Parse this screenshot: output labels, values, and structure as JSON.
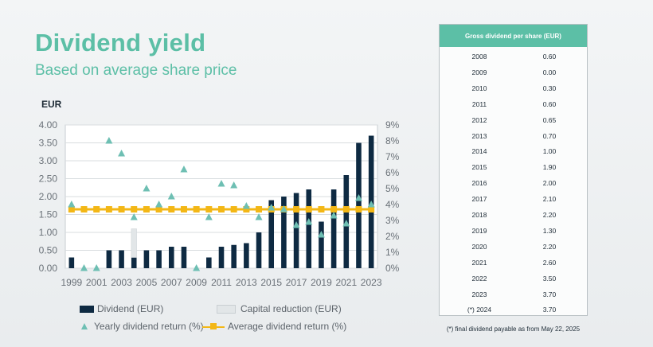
{
  "title": "Dividend yield",
  "subtitle": "Based on average share price",
  "chart_data": {
    "type": "bar",
    "y_unit_label": "EUR",
    "years": [
      1999,
      2000,
      2001,
      2002,
      2003,
      2004,
      2005,
      2006,
      2007,
      2008,
      2009,
      2010,
      2011,
      2012,
      2013,
      2014,
      2015,
      2016,
      2017,
      2018,
      2019,
      2020,
      2021,
      2022,
      2023
    ],
    "x_tick_labels": [
      "1999",
      "2001",
      "2003",
      "2005",
      "2007",
      "2009",
      "2011",
      "2013",
      "2015",
      "2017",
      "2019",
      "2021",
      "2023"
    ],
    "y_left_ticks": [
      "0.00",
      "0.50",
      "1.00",
      "1.50",
      "2.00",
      "2.50",
      "3.00",
      "3.50",
      "4.00"
    ],
    "y_right_ticks": [
      "0%",
      "1%",
      "2%",
      "3%",
      "4%",
      "5%",
      "6%",
      "7%",
      "8%",
      "9%"
    ],
    "ylim_left": [
      0,
      4
    ],
    "ylim_right": [
      0,
      9
    ],
    "series": [
      {
        "name": "Dividend (EUR)",
        "type": "bar",
        "axis": "left",
        "values": [
          0.3,
          0,
          0,
          0.5,
          0.5,
          0.3,
          0.5,
          0.5,
          0.6,
          0.6,
          0,
          0.3,
          0.6,
          0.65,
          0.7,
          1.0,
          1.9,
          2.0,
          2.1,
          2.2,
          1.3,
          2.2,
          2.6,
          3.5,
          3.7
        ]
      },
      {
        "name": "Capital reduction (EUR)",
        "type": "bar",
        "axis": "left",
        "values": [
          0,
          0,
          0,
          0,
          0,
          0.8,
          0,
          0,
          0,
          0,
          0,
          0,
          0,
          0,
          0,
          0,
          0,
          0,
          0,
          0,
          0,
          0,
          0,
          0,
          0
        ]
      },
      {
        "name": "Yearly dividend return (%)",
        "type": "scatter",
        "axis": "right",
        "values": [
          4.0,
          0,
          0,
          8.0,
          7.2,
          3.2,
          5.0,
          4.0,
          4.5,
          6.2,
          0,
          3.2,
          5.3,
          5.2,
          3.9,
          3.2,
          3.8,
          3.7,
          2.7,
          2.9,
          2.1,
          3.3,
          2.8,
          4.4,
          4.0
        ]
      },
      {
        "name": "Average dividend return (%)",
        "type": "line",
        "axis": "right",
        "values": [
          3.7,
          3.7,
          3.7,
          3.7,
          3.7,
          3.7,
          3.7,
          3.7,
          3.7,
          3.7,
          3.7,
          3.7,
          3.7,
          3.7,
          3.7,
          3.7,
          3.7,
          3.7,
          3.7,
          3.7,
          3.7,
          3.7,
          3.7,
          3.7,
          3.7
        ]
      }
    ],
    "legend": [
      "Dividend (EUR)",
      "Capital reduction (EUR)",
      "Yearly dividend return (%)",
      "Average dividend return (%)"
    ],
    "grid": true,
    "colors": {
      "dividend": "#0e2a42",
      "capital": "#e2e6e8",
      "yearly": "#6ebfb3",
      "average": "#f3b716",
      "accent": "#5cbfa6"
    }
  },
  "table": {
    "header": "Gross dividend per share (EUR)",
    "rows": [
      {
        "year": "2008",
        "value": "0.60"
      },
      {
        "year": "2009",
        "value": "0.00"
      },
      {
        "year": "2010",
        "value": "0.30"
      },
      {
        "year": "2011",
        "value": "0.60"
      },
      {
        "year": "2012",
        "value": "0.65"
      },
      {
        "year": "2013",
        "value": "0.70"
      },
      {
        "year": "2014",
        "value": "1.00"
      },
      {
        "year": "2015",
        "value": "1.90"
      },
      {
        "year": "2016",
        "value": "2.00"
      },
      {
        "year": "2017",
        "value": "2.10"
      },
      {
        "year": "2018",
        "value": "2.20"
      },
      {
        "year": "2019",
        "value": "1.30"
      },
      {
        "year": "2020",
        "value": "2.20"
      },
      {
        "year": "2021",
        "value": "2.60"
      },
      {
        "year": "2022",
        "value": "3.50"
      },
      {
        "year": "2023",
        "value": "3.70"
      },
      {
        "year": "(*) 2024",
        "value": "3.70"
      }
    ],
    "footnote": "(*) final dividend payable as from May 22, 2025"
  }
}
